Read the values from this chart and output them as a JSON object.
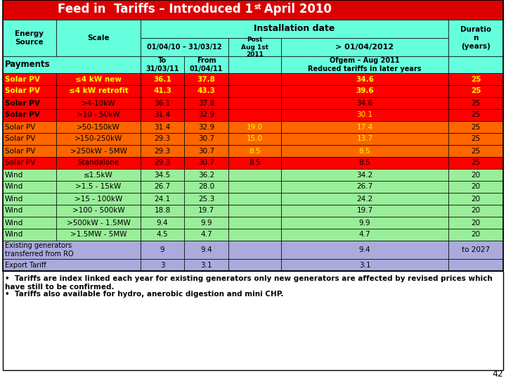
{
  "title_bg": "#DD0000",
  "title_fg": "#FFFFFF",
  "header_bg": "#66FFDD",
  "rows": [
    {
      "source": "Solar PV",
      "scale": "≤4 kW new",
      "to": "36.1",
      "from_": "37.8",
      "post": "",
      "gt2012": "34.6",
      "dur": "25",
      "row_bg": "#FF0000",
      "src_fw": "bold",
      "sc_fw": "bold",
      "val_fw": "bold",
      "src_color": "#FFFF00",
      "sc_color": "#FFFF00",
      "val_color": "#FFFF00",
      "post_color": "#FFFF00",
      "gt_color": "#FFFF00",
      "dur_color": "#FFFF00"
    },
    {
      "source": "Solar PV",
      "scale": "≤4 kW retrofit",
      "to": "41.3",
      "from_": "43.3",
      "post": "",
      "gt2012": "39.6",
      "dur": "25",
      "row_bg": "#FF0000",
      "src_fw": "bold",
      "sc_fw": "bold",
      "val_fw": "bold",
      "src_color": "#FFFF00",
      "sc_color": "#FFFF00",
      "val_color": "#FFFF00",
      "post_color": "#FFFF00",
      "gt_color": "#FFFF00",
      "dur_color": "#FFFF00"
    },
    {
      "source": "Solar PV",
      "scale": ">4-10kW",
      "to": "36.1",
      "from_": "37.8",
      "post": "",
      "gt2012": "34.6",
      "dur": "25",
      "row_bg": "#FF0000",
      "src_fw": "bold",
      "sc_fw": "normal",
      "val_fw": "normal",
      "src_color": "#000000",
      "sc_color": "#000000",
      "val_color": "#000000",
      "post_color": "#000000",
      "gt_color": "#000000",
      "dur_color": "#000000"
    },
    {
      "source": "Solar PV",
      "scale": ">10 - 50kW",
      "to": "31.4",
      "from_": "32.9",
      "post": "",
      "gt2012": "30.1",
      "dur": "25",
      "row_bg": "#FF0000",
      "src_fw": "bold",
      "sc_fw": "normal",
      "val_fw": "normal",
      "src_color": "#000000",
      "sc_color": "#000000",
      "val_color": "#000000",
      "post_color": "#000000",
      "gt_color": "#FFFF00",
      "dur_color": "#000000"
    },
    {
      "source": "Solar PV",
      "scale": ">50-150kW",
      "to": "31.4",
      "from_": "32.9",
      "post": "19.0",
      "gt2012": "17.4",
      "dur": "25",
      "row_bg": "#FF6600",
      "src_fw": "normal",
      "sc_fw": "normal",
      "val_fw": "normal",
      "src_color": "#000000",
      "sc_color": "#000000",
      "val_color": "#000000",
      "post_color": "#FFFF00",
      "gt_color": "#FFFF00",
      "dur_color": "#000000"
    },
    {
      "source": "Solar PV",
      "scale": ">150-250kW",
      "to": "29.3",
      "from_": "30.7",
      "post": "15.0",
      "gt2012": "13.7",
      "dur": "25",
      "row_bg": "#FF6600",
      "src_fw": "normal",
      "sc_fw": "normal",
      "val_fw": "normal",
      "src_color": "#000000",
      "sc_color": "#000000",
      "val_color": "#000000",
      "post_color": "#FFFF00",
      "gt_color": "#FFFF00",
      "dur_color": "#000000"
    },
    {
      "source": "Solar PV",
      "scale": ">250kW - 5MW",
      "to": "29.3",
      "from_": "30.7",
      "post": "8.5",
      "gt2012": "8.5",
      "dur": "25",
      "row_bg": "#FF6600",
      "src_fw": "normal",
      "sc_fw": "normal",
      "val_fw": "normal",
      "src_color": "#000000",
      "sc_color": "#000000",
      "val_color": "#000000",
      "post_color": "#FFFF00",
      "gt_color": "#FFFF00",
      "dur_color": "#000000"
    },
    {
      "source": "Solar PV",
      "scale": "Standalone",
      "to": "29.3",
      "from_": "30.7",
      "post": "8.5",
      "gt2012": "8.5",
      "dur": "25",
      "row_bg": "#FF0000",
      "src_fw": "normal",
      "sc_fw": "normal",
      "val_fw": "normal",
      "src_color": "#000000",
      "sc_color": "#000000",
      "val_color": "#000000",
      "post_color": "#000000",
      "gt_color": "#000000",
      "dur_color": "#000000"
    },
    {
      "source": "Wind",
      "scale": "≤1.5kW",
      "to": "34.5",
      "from_": "36.2",
      "post": "",
      "gt2012": "34.2",
      "dur": "20",
      "row_bg": "#99EE99",
      "src_fw": "normal",
      "sc_fw": "normal",
      "val_fw": "normal",
      "src_color": "#000000",
      "sc_color": "#000000",
      "val_color": "#000000",
      "post_color": "#000000",
      "gt_color": "#000000",
      "dur_color": "#000000"
    },
    {
      "source": "Wind",
      "scale": ">1.5 - 15kW",
      "to": "26.7",
      "from_": "28.0",
      "post": "",
      "gt2012": "26.7",
      "dur": "20",
      "row_bg": "#99EE99",
      "src_fw": "normal",
      "sc_fw": "normal",
      "val_fw": "normal",
      "src_color": "#000000",
      "sc_color": "#000000",
      "val_color": "#000000",
      "post_color": "#000000",
      "gt_color": "#000000",
      "dur_color": "#000000"
    },
    {
      "source": "Wind",
      "scale": ">15 - 100kW",
      "to": "24.1",
      "from_": "25.3",
      "post": "",
      "gt2012": "24.2",
      "dur": "20",
      "row_bg": "#99EE99",
      "src_fw": "normal",
      "sc_fw": "normal",
      "val_fw": "normal",
      "src_color": "#000000",
      "sc_color": "#000000",
      "val_color": "#000000",
      "post_color": "#000000",
      "gt_color": "#000000",
      "dur_color": "#000000"
    },
    {
      "source": "Wind",
      "scale": ">100 - 500kW",
      "to": "18.8",
      "from_": "19.7",
      "post": "",
      "gt2012": "19.7",
      "dur": "20",
      "row_bg": "#99EE99",
      "src_fw": "normal",
      "sc_fw": "normal",
      "val_fw": "normal",
      "src_color": "#000000",
      "sc_color": "#000000",
      "val_color": "#000000",
      "post_color": "#000000",
      "gt_color": "#000000",
      "dur_color": "#000000"
    },
    {
      "source": "Wind",
      "scale": ">500kW - 1.5MW",
      "to": "9.4",
      "from_": "9.9",
      "post": "",
      "gt2012": "9.9",
      "dur": "20",
      "row_bg": "#99EE99",
      "src_fw": "normal",
      "sc_fw": "normal",
      "val_fw": "normal",
      "src_color": "#000000",
      "sc_color": "#000000",
      "val_color": "#000000",
      "post_color": "#000000",
      "gt_color": "#000000",
      "dur_color": "#000000"
    },
    {
      "source": "Wind",
      "scale": ">1.5MW - 5MW",
      "to": "4.5",
      "from_": "4.7",
      "post": "",
      "gt2012": "4.7",
      "dur": "20",
      "row_bg": "#99EE99",
      "src_fw": "normal",
      "sc_fw": "normal",
      "val_fw": "normal",
      "src_color": "#000000",
      "sc_color": "#000000",
      "val_color": "#000000",
      "post_color": "#000000",
      "gt_color": "#000000",
      "dur_color": "#000000"
    }
  ],
  "extra_rows": [
    {
      "label": "Existing generators\ntransferred from RO",
      "to": "9",
      "from_": "9.4",
      "post": "",
      "gt2012": "9.4",
      "dur": "to 2027",
      "row_bg": "#AAAADD",
      "label_lines": 2
    },
    {
      "label": "Export Tariff",
      "to": "3",
      "from_": "3.1",
      "post": "",
      "gt2012": "3.1",
      "dur": "",
      "row_bg": "#AAAADD",
      "label_lines": 1
    }
  ],
  "footnotes": [
    "Tariffs are index linked each year for existing generators only new generators are affected by revised prices which have still to be confirmed.",
    "Tariffs also available for hydro, anerobic digestion and mini CHP."
  ],
  "page_num": "42"
}
